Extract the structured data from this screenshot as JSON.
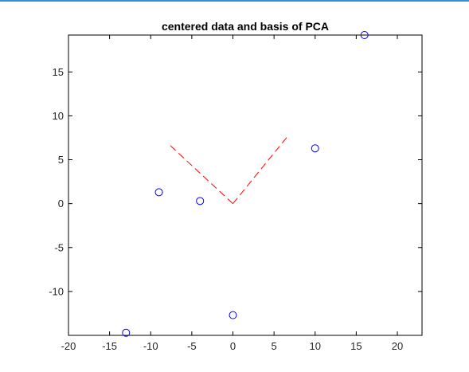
{
  "colors": {
    "window_accent": "#2f8fd8",
    "points": "#0000ff",
    "basis": "#ff0000",
    "axes": "#000000"
  },
  "chart_data": {
    "type": "scatter",
    "title": "centered data and basis of PCA",
    "xlabel": "",
    "ylabel": "",
    "xlim": [
      -20,
      23
    ],
    "ylim": [
      -15,
      19.2
    ],
    "xticks": [
      -20,
      -15,
      -10,
      -5,
      0,
      5,
      10,
      15,
      20
    ],
    "yticks": [
      -10,
      -5,
      0,
      5,
      10,
      15
    ],
    "xtick_labels": [
      "-20",
      "-15",
      "-10",
      "-5",
      "0",
      "5",
      "10",
      "15",
      "20"
    ],
    "ytick_labels": [
      "-10",
      "-5",
      "0",
      "5",
      "10",
      "15"
    ],
    "grid": false,
    "box": true,
    "series": [
      {
        "kind": "points",
        "marker": "circle-open",
        "color": "#0000ff",
        "x": [
          -13,
          -9,
          -4,
          0,
          10,
          16
        ],
        "y": [
          -14.7,
          1.3,
          0.3,
          -12.7,
          6.3,
          19.2
        ]
      },
      {
        "kind": "dashed-lines",
        "color": "#ff0000",
        "segments": [
          {
            "x": [
              0,
              6.6
            ],
            "y": [
              0,
              7.6
            ]
          },
          {
            "x": [
              0,
              -7.6
            ],
            "y": [
              0,
              6.6
            ]
          }
        ]
      }
    ]
  }
}
